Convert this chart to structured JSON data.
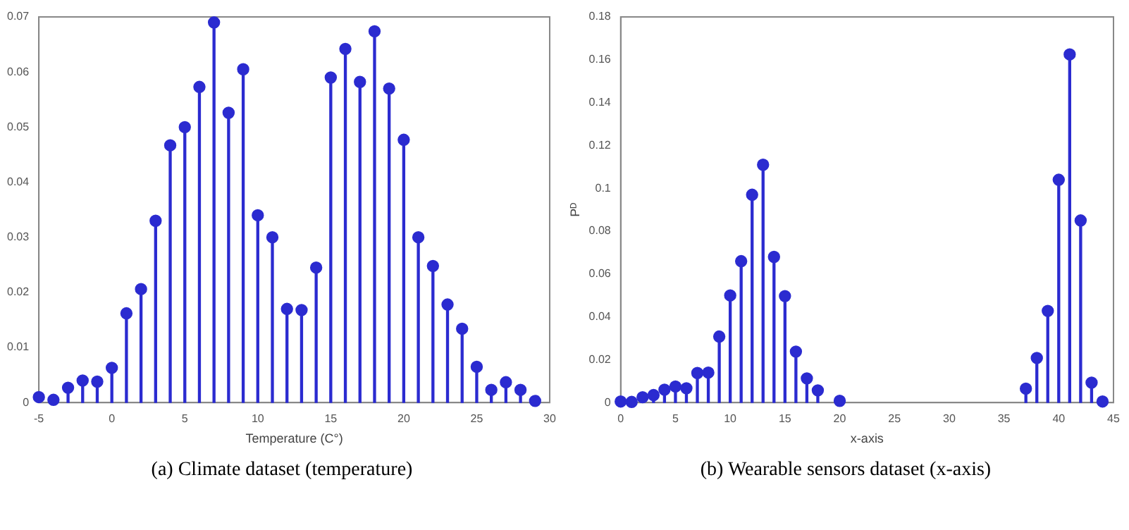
{
  "chart_data": [
    {
      "type": "lollipop",
      "xlabel": "Temperature (C°)",
      "x": [
        -5,
        -4,
        -3,
        -2,
        -1,
        0,
        1,
        2,
        3,
        4,
        5,
        6,
        7,
        8,
        9,
        10,
        11,
        12,
        13,
        14,
        15,
        16,
        17,
        18,
        19,
        20,
        21,
        22,
        23,
        24,
        25,
        26,
        27,
        28,
        29
      ],
      "series": [
        {
          "color": "#2b2bd0",
          "values": [
            0.001,
            0.0005,
            0.0027,
            0.004,
            0.0038,
            0.0063,
            0.0162,
            0.0206,
            0.033,
            0.0467,
            0.05,
            0.0573,
            0.069,
            0.0526,
            0.0605,
            0.034,
            0.03,
            0.017,
            0.0168,
            0.0245,
            0.059,
            0.0642,
            0.0582,
            0.0674,
            0.057,
            0.0477,
            0.03,
            0.0248,
            0.0178,
            0.0134,
            0.0065,
            0.0023,
            0.0037,
            0.0023,
            0.0003
          ]
        }
      ],
      "xlim": [
        -5,
        30
      ],
      "xticks": [
        -5,
        0,
        5,
        10,
        15,
        20,
        25,
        30
      ],
      "ylim": [
        0,
        0.07
      ],
      "yticks": [
        0,
        0.01,
        0.02,
        0.03,
        0.04,
        0.05,
        0.06,
        0.07
      ],
      "grid": false,
      "marker": "circle",
      "annotations": [
        "(a) Climate dataset (temperature)"
      ]
    },
    {
      "type": "lollipop",
      "xlabel": "x-axis",
      "ylabel": "Pᴰ",
      "x": [
        0,
        1,
        2,
        3,
        4,
        5,
        6,
        7,
        8,
        9,
        10,
        11,
        12,
        13,
        14,
        15,
        16,
        17,
        18,
        20,
        37,
        38,
        39,
        40,
        41,
        42,
        43,
        44
      ],
      "series": [
        {
          "color": "#2b2bd0",
          "values": [
            0.0005,
            0.0003,
            0.0025,
            0.0035,
            0.006,
            0.0075,
            0.0067,
            0.0138,
            0.014,
            0.0308,
            0.05,
            0.066,
            0.097,
            0.111,
            0.068,
            0.0497,
            0.0238,
            0.0113,
            0.0057,
            0.0008,
            0.0065,
            0.0208,
            0.0428,
            0.104,
            0.1625,
            0.085,
            0.0093,
            0.0005
          ]
        }
      ],
      "xlim": [
        0,
        45
      ],
      "xticks": [
        0,
        5,
        10,
        15,
        20,
        25,
        30,
        35,
        40,
        45
      ],
      "ylim": [
        0,
        0.18
      ],
      "yticks": [
        0,
        0.02,
        0.04,
        0.06,
        0.08,
        0.1,
        0.12,
        0.14,
        0.16,
        0.18
      ],
      "grid": false,
      "marker": "circle",
      "annotations": [
        "(b) Wearable sensors dataset (x-axis)"
      ]
    }
  ]
}
